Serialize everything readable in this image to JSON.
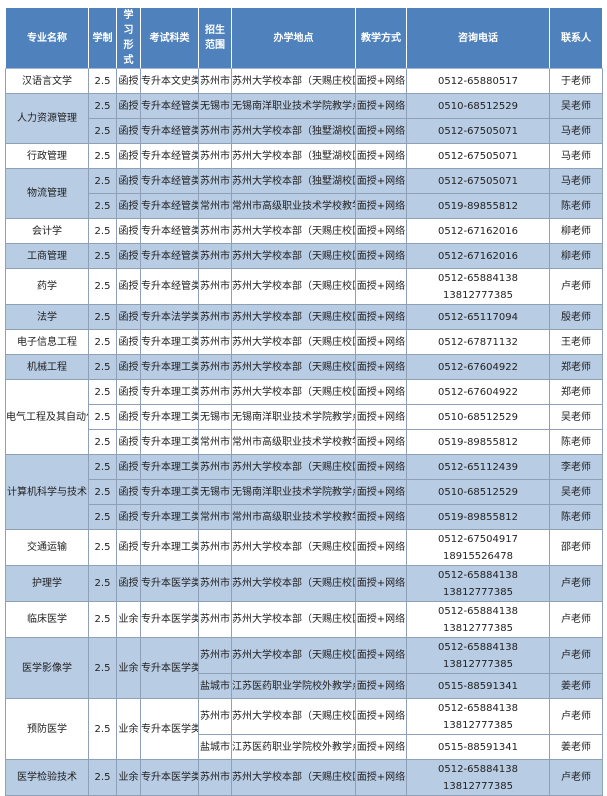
{
  "colors": {
    "header": "#4f81bd",
    "shaded_row": "#b8cce4"
  },
  "headers": [
    "专业名称",
    "学制",
    "学习形式",
    "考试科类",
    "招生范围",
    "办学地点",
    "教学方式",
    "咨询电话",
    "联系人"
  ],
  "majors": [
    {
      "name": "汉语言文学",
      "rows": [
        {
          "years": "2.5",
          "mode": "函授",
          "exam": "专升本文史类",
          "city": "苏州市",
          "location": "苏州大学校本部（天赐庄校区）",
          "method": "面授+网络",
          "phones": [
            "0512-65880517"
          ],
          "contact": "于老师"
        }
      ]
    },
    {
      "name": "人力资源管理",
      "rows": [
        {
          "years": "2.5",
          "mode": "函授",
          "exam": "专升本经管类",
          "city": "无锡市",
          "location": "无锡南洋职业技术学院教学点",
          "method": "面授+网络",
          "phones": [
            "0510-68512529"
          ],
          "contact": "吴老师"
        },
        {
          "years": "2.5",
          "mode": "函授",
          "exam": "专升本经管类",
          "city": "苏州市",
          "location": "苏州大学校本部（独墅湖校区）",
          "method": "面授+网络",
          "phones": [
            "0512-67505071"
          ],
          "contact": "马老师"
        }
      ]
    },
    {
      "name": "行政管理",
      "rows": [
        {
          "years": "2.5",
          "mode": "函授",
          "exam": "专升本经管类",
          "city": "苏州市",
          "location": "苏州大学校本部（独墅湖校区）",
          "method": "面授+网络",
          "phones": [
            "0512-67505071"
          ],
          "contact": "马老师"
        }
      ]
    },
    {
      "name": "物流管理",
      "rows": [
        {
          "years": "2.5",
          "mode": "函授",
          "exam": "专升本经管类",
          "city": "苏州市",
          "location": "苏州大学校本部（独墅湖校区）",
          "method": "面授+网络",
          "phones": [
            "0512-67505071"
          ],
          "contact": "马老师"
        },
        {
          "years": "2.5",
          "mode": "函授",
          "exam": "专升本经管类",
          "city": "常州市",
          "location": "常州市高级职业技术学校教学点",
          "method": "面授+网络",
          "phones": [
            "0519-89855812"
          ],
          "contact": "陈老师"
        }
      ]
    },
    {
      "name": "会计学",
      "rows": [
        {
          "years": "2.5",
          "mode": "函授",
          "exam": "专升本经管类",
          "city": "苏州市",
          "location": "苏州大学校本部（天赐庄校区）",
          "method": "面授+网络",
          "phones": [
            "0512-67162016"
          ],
          "contact": "柳老师"
        }
      ]
    },
    {
      "name": "工商管理",
      "rows": [
        {
          "years": "2.5",
          "mode": "函授",
          "exam": "专升本经管类",
          "city": "苏州市",
          "location": "苏州大学校本部（天赐庄校区）",
          "method": "面授+网络",
          "phones": [
            "0512-67162016"
          ],
          "contact": "柳老师"
        }
      ]
    },
    {
      "name": "药学",
      "rows": [
        {
          "years": "2.5",
          "mode": "函授",
          "exam": "专升本经管类",
          "city": "苏州市",
          "location": "苏州大学校本部（天赐庄校区）",
          "method": "面授+网络",
          "phones": [
            "0512-65884138",
            "13812777385"
          ],
          "contact": "卢老师"
        }
      ]
    },
    {
      "name": "法学",
      "rows": [
        {
          "years": "2.5",
          "mode": "函授",
          "exam": "专升本法学类",
          "city": "苏州市",
          "location": "苏州大学校本部（天赐庄校区）",
          "method": "面授+网络",
          "phones": [
            "0512-65117094"
          ],
          "contact": "殷老师"
        }
      ]
    },
    {
      "name": "电子信息工程",
      "rows": [
        {
          "years": "2.5",
          "mode": "函授",
          "exam": "专升本理工类",
          "city": "苏州市",
          "location": "苏州大学校本部（天赐庄校区）",
          "method": "面授+网络",
          "phones": [
            "0512-67871132"
          ],
          "contact": "王老师"
        }
      ]
    },
    {
      "name": "机械工程",
      "rows": [
        {
          "years": "2.5",
          "mode": "函授",
          "exam": "专升本理工类",
          "city": "苏州市",
          "location": "苏州大学校本部（天赐庄校区）",
          "method": "面授+网络",
          "phones": [
            "0512-67604922"
          ],
          "contact": "郑老师"
        }
      ]
    },
    {
      "name": "电气工程及其自动化",
      "rows": [
        {
          "years": "2.5",
          "mode": "函授",
          "exam": "专升本理工类",
          "city": "苏州市",
          "location": "苏州大学校本部（天赐庄校区）",
          "method": "面授+网络",
          "phones": [
            "0512-67604922"
          ],
          "contact": "郑老师"
        },
        {
          "years": "2.5",
          "mode": "函授",
          "exam": "专升本理工类",
          "city": "无锡市",
          "location": "无锡南洋职业技术学院教学点",
          "method": "面授+网络",
          "phones": [
            "0510-68512529"
          ],
          "contact": "吴老师"
        },
        {
          "years": "2.5",
          "mode": "函授",
          "exam": "专升本理工类",
          "city": "常州市",
          "location": "常州市高级职业技术学校教学点",
          "method": "面授+网络",
          "phones": [
            "0519-89855812"
          ],
          "contact": "陈老师"
        }
      ]
    },
    {
      "name": "计算机科学与技术",
      "rows": [
        {
          "years": "2.5",
          "mode": "函授",
          "exam": "专升本理工类",
          "city": "苏州市",
          "location": "苏州大学校本部（天赐庄校区）",
          "method": "面授+网络",
          "phones": [
            "0512-65112439"
          ],
          "contact": "李老师"
        },
        {
          "years": "2.5",
          "mode": "函授",
          "exam": "专升本理工类",
          "city": "无锡市",
          "location": "无锡南洋职业技术学院教学点",
          "method": "面授+网络",
          "phones": [
            "0510-68512529"
          ],
          "contact": "吴老师"
        },
        {
          "years": "2.5",
          "mode": "函授",
          "exam": "专升本理工类",
          "city": "常州市",
          "location": "常州市高级职业技术学校教学点",
          "method": "面授+网络",
          "phones": [
            "0519-89855812"
          ],
          "contact": "陈老师"
        }
      ]
    },
    {
      "name": "交通运输",
      "rows": [
        {
          "years": "2.5",
          "mode": "函授",
          "exam": "专升本理工类",
          "city": "苏州市",
          "location": "苏州大学校本部（天赐庄校区）",
          "method": "面授+网络",
          "phones": [
            "0512-67504917",
            "18915526478"
          ],
          "contact": "邵老师"
        }
      ]
    },
    {
      "name": "护理学",
      "rows": [
        {
          "years": "2.5",
          "mode": "函授",
          "exam": "专升本医学类",
          "city": "苏州市",
          "location": "苏州大学校本部（天赐庄校区）",
          "method": "面授+网络",
          "phones": [
            "0512-65884138",
            "13812777385"
          ],
          "contact": "卢老师"
        }
      ]
    },
    {
      "name": "临床医学",
      "rows": [
        {
          "years": "2.5",
          "mode": "业余",
          "exam": "专升本医学类",
          "city": "苏州市",
          "location": "苏州大学校本部（天赐庄校区）",
          "method": "面授+网络",
          "phones": [
            "0512-65884138",
            "13812777385"
          ],
          "contact": "卢老师"
        }
      ]
    },
    {
      "name": "医学影像学",
      "merged": true,
      "years": "2.5",
      "mode": "业余",
      "exam": "专升本医学类",
      "rows": [
        {
          "city": "苏州市",
          "location": "苏州大学校本部（天赐庄校区）",
          "method": "面授+网络",
          "phones": [
            "0512-65884138",
            "13812777385"
          ],
          "contact": "卢老师"
        },
        {
          "city": "盐城市",
          "location": "江苏医药职业学院校外教学点",
          "method": "面授+网络",
          "phones": [
            "0515-88591341"
          ],
          "contact": "姜老师"
        }
      ]
    },
    {
      "name": "预防医学",
      "merged": true,
      "years": "2.5",
      "mode": "业余",
      "exam": "专升本医学类",
      "rows": [
        {
          "city": "苏州市",
          "location": "苏州大学校本部（天赐庄校区）",
          "method": "面授+网络",
          "phones": [
            "0512-65884138",
            "13812777385"
          ],
          "contact": "卢老师"
        },
        {
          "city": "盐城市",
          "location": "江苏医药职业学院校外教学点",
          "method": "面授+网络",
          "phones": [
            "0515-88591341"
          ],
          "contact": "姜老师"
        }
      ]
    },
    {
      "name": "医学检验技术",
      "rows": [
        {
          "years": "2.5",
          "mode": "业余",
          "exam": "专升本医学类",
          "city": "苏州市",
          "location": "苏州大学校本部（天赐庄校区）",
          "method": "面授+网络",
          "phones": [
            "0512-65884138",
            "13812777385"
          ],
          "contact": "卢老师"
        }
      ]
    }
  ]
}
